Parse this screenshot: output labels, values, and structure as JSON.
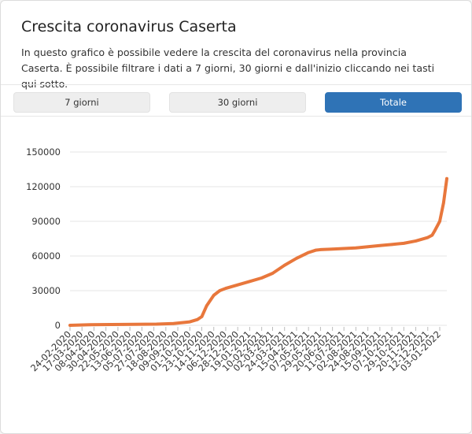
{
  "header": {
    "title": "Crescita coronavirus Caserta",
    "description": "In questo grafico è possibile vedere la crescita del coronavirus nella provincia Caserta. È possibile filtrare i dati a 7 giorni, 30 giorni e dall'inizio cliccando nei tasti qui sotto."
  },
  "filters": {
    "btn_7": "7 giorni",
    "btn_30": "30 giorni",
    "btn_all": "Totale",
    "active": "Totale"
  },
  "colors": {
    "line": "#e8773c",
    "active_button": "#2f73b6",
    "grid": "#e5e5e5"
  },
  "chart_data": {
    "type": "line",
    "title": "",
    "xlabel": "",
    "ylabel": "",
    "ylim": [
      0,
      150000
    ],
    "y_ticks": [
      0,
      30000,
      60000,
      90000,
      120000,
      150000
    ],
    "grid": true,
    "legend": "none",
    "x_tick_labels": [
      "24-02-2020",
      "17-03-2020",
      "08-04-2020",
      "30-04-2020",
      "22-05-2020",
      "13-06-2020",
      "05-07-2020",
      "27-07-2020",
      "18-08-2020",
      "09-09-2020",
      "01-10-2020",
      "23-10-2020",
      "14-11-2020",
      "06-12-2020",
      "28-12-2020",
      "19-01-2021",
      "10-02-2021",
      "02-03-2021",
      "24-03-2021",
      "15-04-2021",
      "07-05-2021",
      "29-05-2021",
      "20-06-2021",
      "11-07-2021",
      "02-08-2021",
      "24-08-2021",
      "15-09-2021",
      "07-10-2021",
      "29-10-2021",
      "20-11-2021",
      "12-12-2021",
      "03-01-2022"
    ],
    "series": [
      {
        "x": [
          "24-02-2020",
          "01-04-2020",
          "01-06-2020",
          "01-08-2020",
          "01-09-2020",
          "01-10-2020",
          "15-10-2020",
          "23-10-2020",
          "01-11-2020",
          "14-11-2020",
          "25-11-2020",
          "06-12-2020",
          "28-12-2020",
          "19-01-2021",
          "10-02-2021",
          "02-03-2021",
          "24-03-2021",
          "15-04-2021",
          "07-05-2021",
          "20-05-2021",
          "29-05-2021",
          "20-06-2021",
          "11-07-2021",
          "02-08-2021",
          "24-08-2021",
          "15-09-2021",
          "07-10-2021",
          "29-10-2021",
          "20-11-2021",
          "12-12-2021",
          "20-12-2021",
          "25-12-2021",
          "03-01-2022",
          "10-01-2022",
          "16-01-2022"
        ],
        "values": [
          0,
          500,
          800,
          1000,
          1500,
          3000,
          5000,
          7500,
          17000,
          26000,
          30000,
          32000,
          35000,
          38000,
          41000,
          45000,
          52000,
          58000,
          63000,
          65000,
          65500,
          66000,
          66500,
          67000,
          68000,
          69000,
          70000,
          71000,
          73000,
          76000,
          78000,
          82000,
          90000,
          106000,
          127000
        ]
      }
    ]
  }
}
